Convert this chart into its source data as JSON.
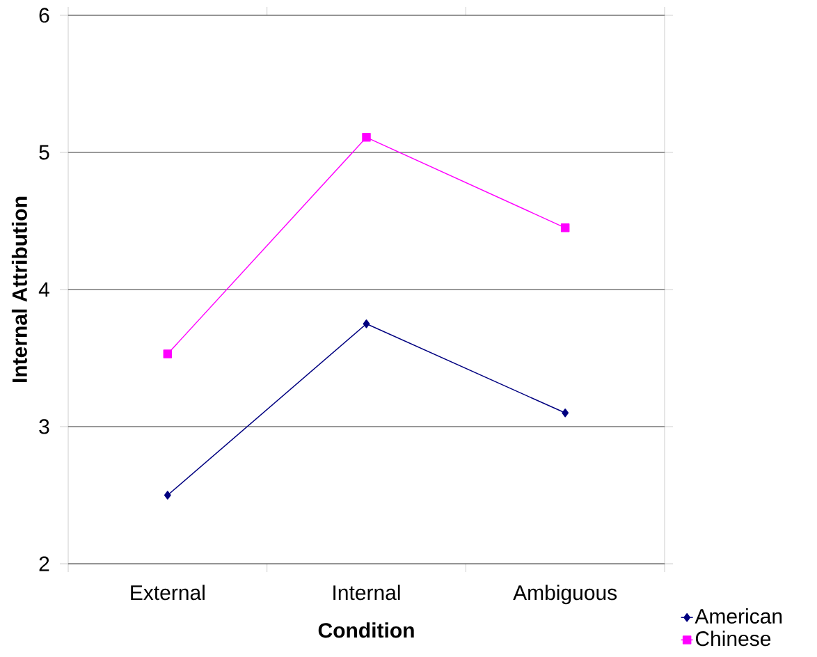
{
  "chart_data": {
    "type": "line",
    "xlabel": "Condition",
    "ylabel": "Internal Attribution",
    "categories": [
      "External",
      "Internal",
      "Ambiguous"
    ],
    "series": [
      {
        "name": "American",
        "color": "#000080",
        "marker": "diamond",
        "values": [
          2.5,
          3.75,
          3.1
        ]
      },
      {
        "name": "Chinese",
        "color": "#ff00ff",
        "marker": "square",
        "values": [
          3.53,
          5.11,
          4.45
        ]
      }
    ],
    "ylim": [
      2,
      6
    ],
    "yticks": [
      2,
      3,
      4,
      5,
      6
    ],
    "grid": "y",
    "legend": "bottom right",
    "line_style": "solid"
  }
}
